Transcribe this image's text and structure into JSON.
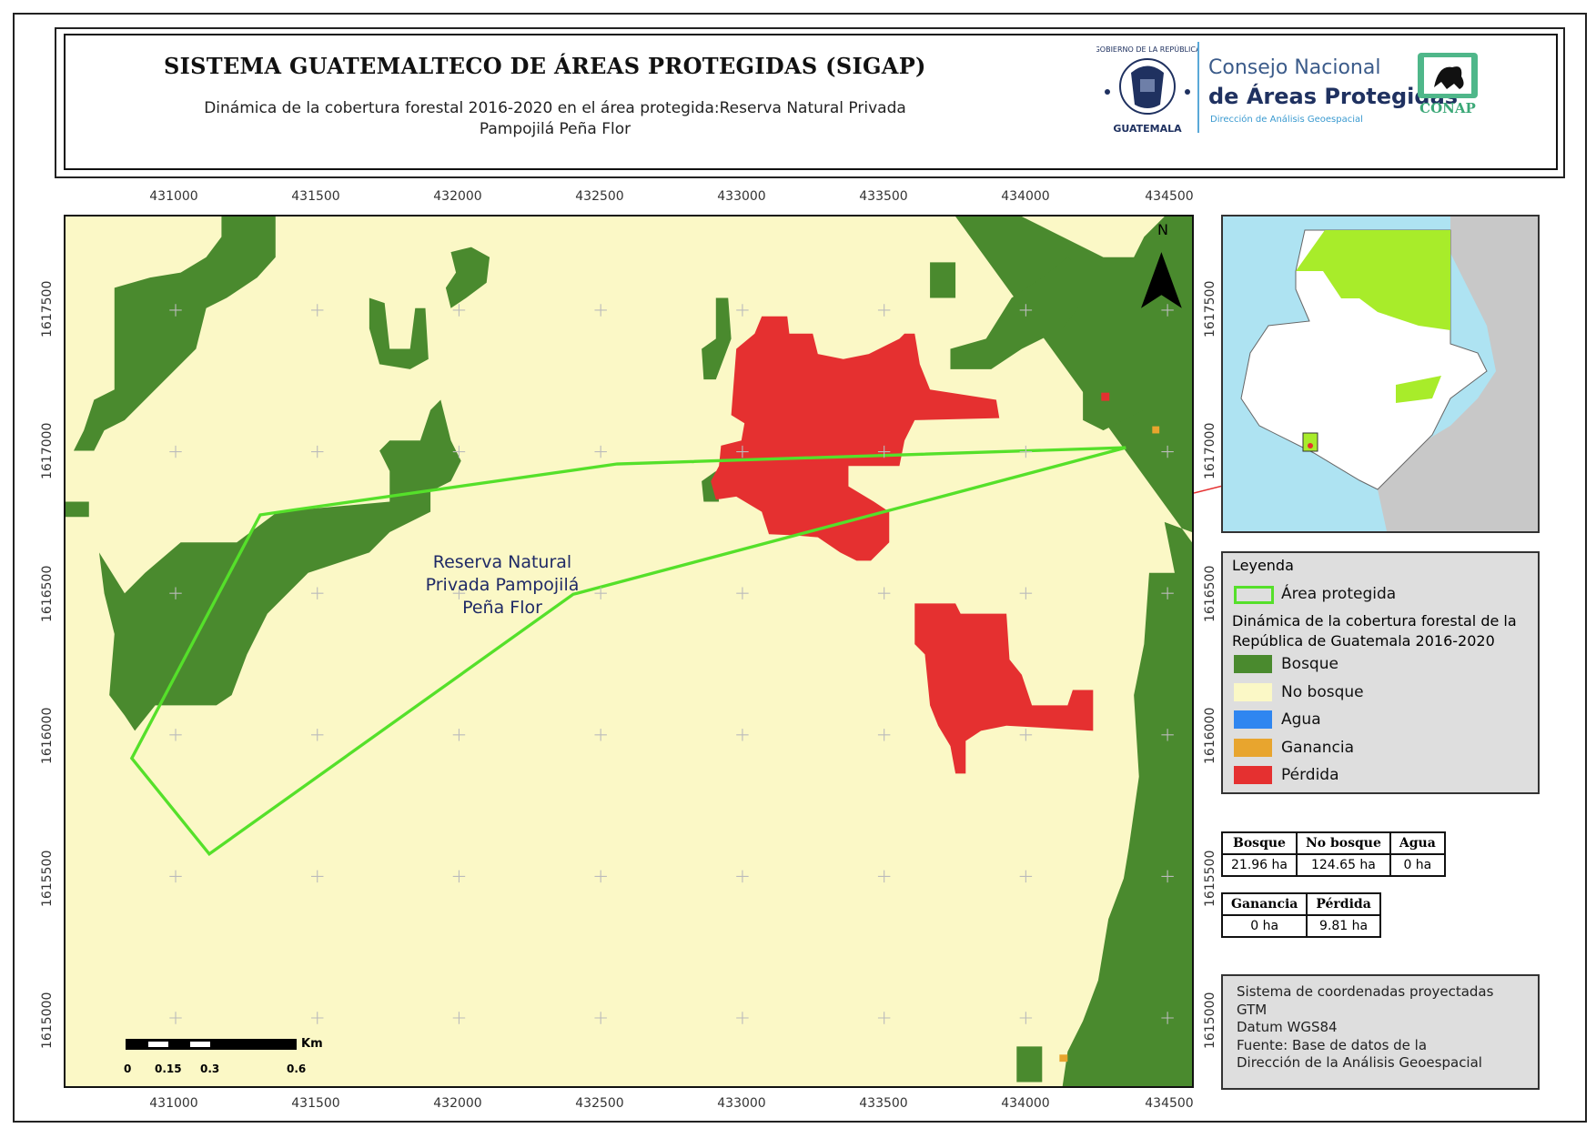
{
  "header": {
    "title": "SISTEMA GUATEMALTECO DE ÁREAS PROTEGIDAS  (SIGAP)",
    "subtitle_line1": "Dinámica de la cobertura forestal 2016-2020 en el área protegida:Reserva Natural Privada",
    "subtitle_line2": "Pampojilá Peña Flor"
  },
  "logos": {
    "gob": "GOBIERNO DE LA REPÚBLICA GUATEMALA",
    "conap_line1": "Consejo Nacional",
    "conap_line2": "de Áreas Protegidas",
    "conap_line3": "Dirección de Análisis Geoespacial",
    "conap_mark": "CONAP"
  },
  "map": {
    "x_ticks": [
      "431000",
      "431500",
      "432000",
      "432500",
      "433000",
      "433500",
      "434000",
      "434500"
    ],
    "y_ticks": [
      "1617500",
      "1617000",
      "1616500",
      "1616000",
      "1615500",
      "1615000"
    ],
    "area_label": [
      "Reserva Natural",
      "Privada Pampojilá",
      "Peña Flor"
    ],
    "north": "N",
    "scale": {
      "unit": "Km",
      "labels": [
        "0",
        "0.15",
        "0.3",
        "0.6"
      ]
    }
  },
  "legend": {
    "title": "Leyenda",
    "area": "Área protegida",
    "dyn_title_1": "Dinámica de la cobertura forestal de la",
    "dyn_title_2": "República de Guatemala 2016-2020",
    "items": [
      {
        "label": "Bosque",
        "color": "#4a8a2e"
      },
      {
        "label": "No bosque",
        "color": "#fbf8c6"
      },
      {
        "label": "Agua",
        "color": "#2f86f0"
      },
      {
        "label": "Ganancia",
        "color": "#e8a52e"
      },
      {
        "label": "Pérdida",
        "color": "#e53030"
      }
    ],
    "area_color": "#55e02a"
  },
  "stats1": {
    "headers": [
      "Bosque",
      "No bosque",
      "Agua"
    ],
    "values": [
      "21.96 ha",
      "124.65 ha",
      "0 ha"
    ]
  },
  "stats2": {
    "headers": [
      "Ganancia",
      "Pérdida"
    ],
    "values": [
      "0 ha",
      "9.81 ha"
    ]
  },
  "info": [
    "Sistema de coordenadas proyectadas",
    "GTM",
    "Datum WGS84",
    "Fuente: Base de datos de la",
    "Dirección de la Análisis Geoespacial"
  ]
}
